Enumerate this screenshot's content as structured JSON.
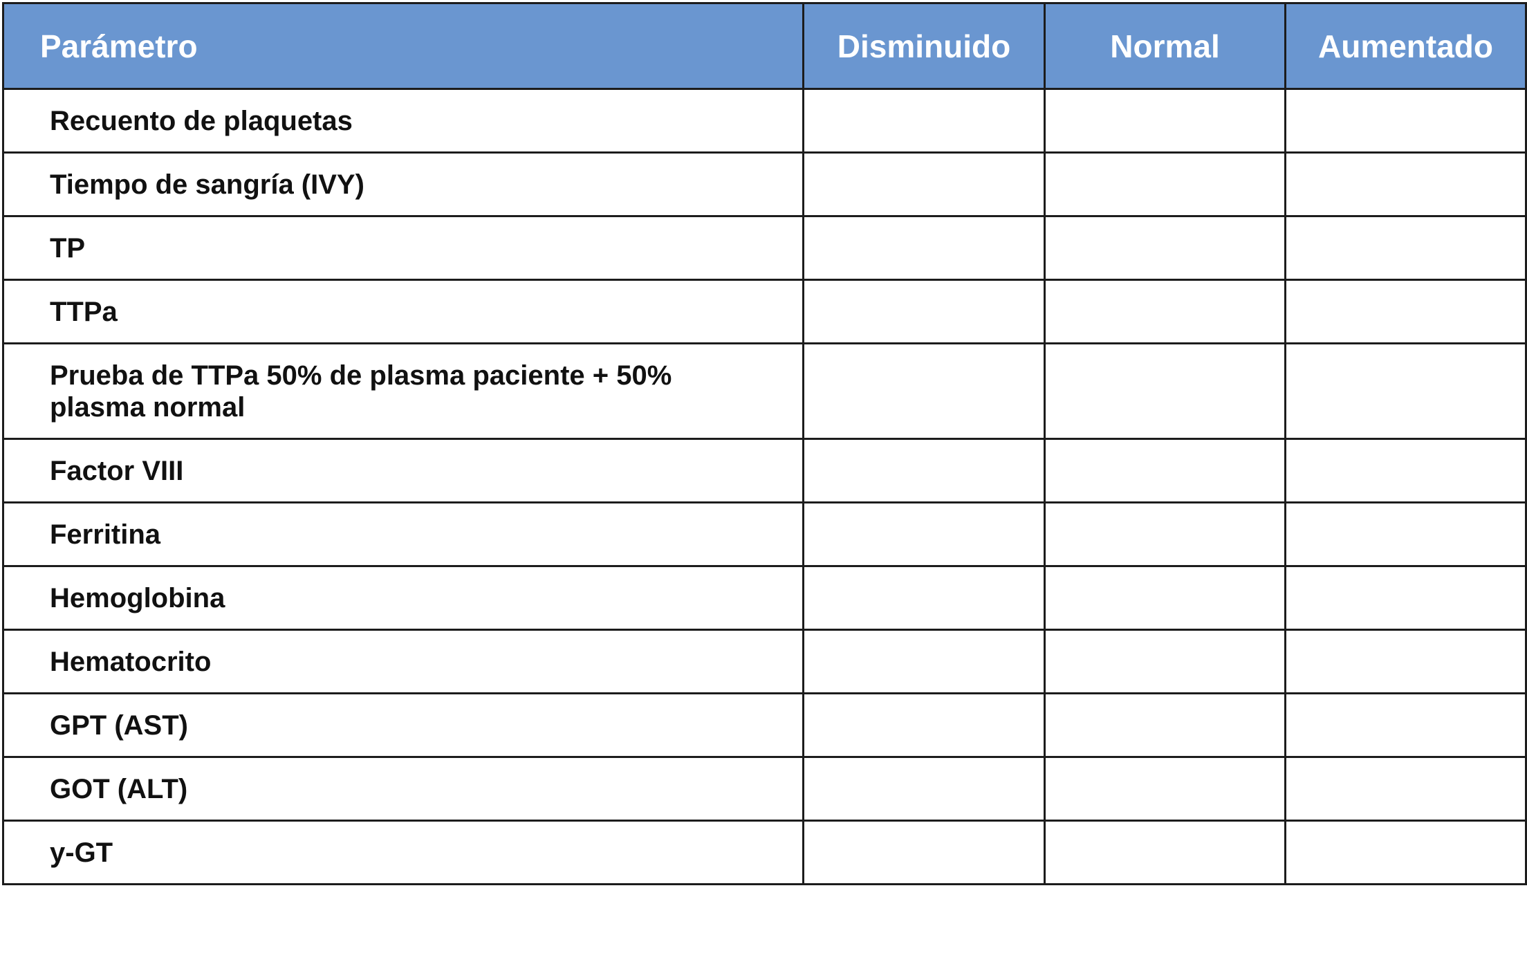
{
  "table": {
    "headers": {
      "parameter": "Parámetro",
      "decreased": "Disminuido",
      "normal": "Normal",
      "increased": "Aumentado"
    },
    "rows": [
      {
        "parameter": "Recuento de plaquetas",
        "decreased": "",
        "normal": "",
        "increased": ""
      },
      {
        "parameter": "Tiempo de sangría (IVY)",
        "decreased": "",
        "normal": "",
        "increased": ""
      },
      {
        "parameter": "TP",
        "decreased": "",
        "normal": "",
        "increased": ""
      },
      {
        "parameter": "TTPa",
        "decreased": "",
        "normal": "",
        "increased": ""
      },
      {
        "parameter": "Prueba de TTPa 50% de plasma paciente + 50% plasma normal",
        "decreased": "",
        "normal": "",
        "increased": ""
      },
      {
        "parameter": "Factor VIII",
        "decreased": "",
        "normal": "",
        "increased": ""
      },
      {
        "parameter": "Ferritina",
        "decreased": "",
        "normal": "",
        "increased": ""
      },
      {
        "parameter": "Hemoglobina",
        "decreased": "",
        "normal": "",
        "increased": ""
      },
      {
        "parameter": "Hematocrito",
        "decreased": "",
        "normal": "",
        "increased": ""
      },
      {
        "parameter": "GPT (AST)",
        "decreased": "",
        "normal": "",
        "increased": ""
      },
      {
        "parameter": "GOT (ALT)",
        "decreased": "",
        "normal": "",
        "increased": ""
      },
      {
        "parameter": "y-GT",
        "decreased": "",
        "normal": "",
        "increased": ""
      }
    ]
  },
  "colors": {
    "header_background": "#6a96d0",
    "header_text": "#ffffff",
    "border": "#1c1c1c",
    "body_text": "#111111"
  }
}
